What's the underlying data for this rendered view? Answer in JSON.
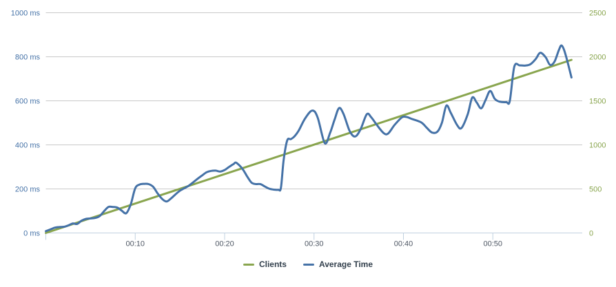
{
  "chart_data": {
    "type": "line",
    "title": "",
    "background_color": "#FFFFFF",
    "grid": true,
    "grid_color": "#C9C9C9",
    "axis_line_color": "#C0D0E0",
    "legend_position": "bottom-center",
    "x_axis": {
      "min": 0,
      "max": 60,
      "unit": "time (mm:ss)",
      "tick_positions": [
        0,
        10,
        20,
        30,
        40,
        50
      ],
      "tick_labels": [
        "",
        "00:10",
        "00:20",
        "00:30",
        "00:40",
        "00:50"
      ],
      "label_color": "#4D5663"
    },
    "y_axis_left": {
      "min": 0,
      "max": 1000,
      "tick_step": 200,
      "tick_labels": [
        "0 ms",
        "200 ms",
        "400 ms",
        "600 ms",
        "800 ms",
        "1000 ms"
      ],
      "label_color": "#4572A7"
    },
    "y_axis_right": {
      "min": 0,
      "max": 2500,
      "tick_step": 500,
      "tick_labels": [
        "0",
        "500",
        "1000",
        "1500",
        "2000",
        "2500"
      ],
      "label_color": "#89A54E"
    },
    "series": [
      {
        "name": "Clients",
        "color": "#89A54E",
        "axis": "right",
        "smooth": false,
        "points": [
          [
            0,
            0
          ],
          [
            58.8,
            1965
          ]
        ]
      },
      {
        "name": "Average Time",
        "color": "#4572A7",
        "axis": "left",
        "smooth": true,
        "points": [
          [
            0,
            8
          ],
          [
            0.5,
            16
          ],
          [
            1,
            24
          ],
          [
            1.5,
            27
          ],
          [
            2,
            28
          ],
          [
            2.5,
            34
          ],
          [
            3,
            43
          ],
          [
            3.5,
            41
          ],
          [
            4,
            56
          ],
          [
            4.5,
            64
          ],
          [
            5,
            66
          ],
          [
            5.5,
            68
          ],
          [
            6,
            76
          ],
          [
            6.5,
            98
          ],
          [
            7,
            118
          ],
          [
            7.5,
            118
          ],
          [
            8,
            115
          ],
          [
            8.5,
            101
          ],
          [
            9,
            90
          ],
          [
            9.5,
            130
          ],
          [
            10,
            203
          ],
          [
            10.5,
            220
          ],
          [
            11,
            223
          ],
          [
            11.5,
            222
          ],
          [
            12,
            210
          ],
          [
            12.5,
            180
          ],
          [
            13,
            155
          ],
          [
            13.5,
            143
          ],
          [
            14,
            157
          ],
          [
            14.5,
            175
          ],
          [
            15,
            192
          ],
          [
            16,
            215
          ],
          [
            17,
            247
          ],
          [
            17.5,
            262
          ],
          [
            18,
            276
          ],
          [
            18.5,
            282
          ],
          [
            19,
            283
          ],
          [
            19.5,
            279
          ],
          [
            20,
            286
          ],
          [
            20.5,
            300
          ],
          [
            21,
            313
          ],
          [
            21.3,
            319
          ],
          [
            22,
            291
          ],
          [
            22.5,
            258
          ],
          [
            23,
            229
          ],
          [
            23.5,
            222
          ],
          [
            24,
            222
          ],
          [
            24.5,
            211
          ],
          [
            25,
            201
          ],
          [
            25.5,
            197
          ],
          [
            26,
            196
          ],
          [
            26.3,
            205
          ],
          [
            26.6,
            330
          ],
          [
            27,
            420
          ],
          [
            27.4,
            426
          ],
          [
            27.8,
            438
          ],
          [
            28.3,
            466
          ],
          [
            29,
            520
          ],
          [
            29.8,
            556
          ],
          [
            30.4,
            525
          ],
          [
            31.2,
            408
          ],
          [
            31.8,
            455
          ],
          [
            32.3,
            515
          ],
          [
            32.8,
            567
          ],
          [
            33.3,
            540
          ],
          [
            34,
            462
          ],
          [
            34.6,
            438
          ],
          [
            35.2,
            470
          ],
          [
            35.9,
            539
          ],
          [
            36.4,
            525
          ],
          [
            37,
            492
          ],
          [
            37.8,
            453
          ],
          [
            38.3,
            452
          ],
          [
            39,
            490
          ],
          [
            39.8,
            524
          ],
          [
            40.3,
            527
          ],
          [
            41,
            517
          ],
          [
            42,
            502
          ],
          [
            42.6,
            478
          ],
          [
            43.2,
            456
          ],
          [
            43.8,
            460
          ],
          [
            44.3,
            500
          ],
          [
            44.8,
            578
          ],
          [
            45.3,
            545
          ],
          [
            46,
            490
          ],
          [
            46.5,
            477
          ],
          [
            47.2,
            540
          ],
          [
            47.7,
            615
          ],
          [
            48.2,
            592
          ],
          [
            48.7,
            566
          ],
          [
            49.2,
            605
          ],
          [
            49.7,
            645
          ],
          [
            50.2,
            610
          ],
          [
            50.7,
            597
          ],
          [
            51.5,
            594
          ],
          [
            51.9,
            600
          ],
          [
            52.4,
            755
          ],
          [
            53,
            761
          ],
          [
            53.6,
            760
          ],
          [
            54.2,
            766
          ],
          [
            54.8,
            790
          ],
          [
            55.3,
            818
          ],
          [
            55.9,
            798
          ],
          [
            56.4,
            763
          ],
          [
            56.9,
            778
          ],
          [
            57.4,
            832
          ],
          [
            57.7,
            851
          ],
          [
            58.1,
            815
          ],
          [
            58.8,
            706
          ]
        ]
      }
    ]
  },
  "legend": {
    "items": [
      {
        "label": "Clients"
      },
      {
        "label": "Average Time"
      }
    ]
  }
}
